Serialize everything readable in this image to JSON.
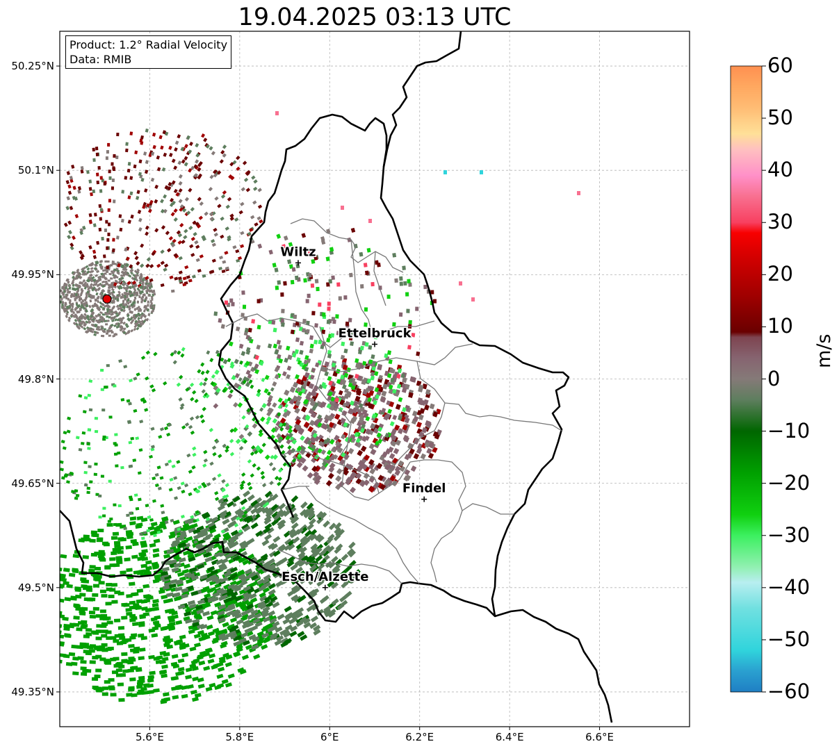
{
  "title": "19.04.2025 03:13 UTC",
  "info": {
    "product": "Product: 1.2° Radial Velocity",
    "data": "Data: RMIB"
  },
  "axes": {
    "lat_ticks": [
      "50.25°N",
      "50.1°N",
      "49.95°N",
      "49.8°N",
      "49.65°N",
      "49.5°N",
      "49.35°N"
    ],
    "lon_ticks": [
      "5.6°E",
      "5.8°E",
      "6°E",
      "6.2°E",
      "6.4°E",
      "6.6°E"
    ],
    "lat_values": [
      50.25,
      50.1,
      49.95,
      49.8,
      49.65,
      49.5,
      49.35
    ],
    "lon_values": [
      5.6,
      5.8,
      6.0,
      6.2,
      6.4,
      6.6
    ],
    "lat_range": [
      49.3,
      50.3
    ],
    "lon_range": [
      5.4,
      6.8
    ],
    "grid": true
  },
  "cities": [
    {
      "name": "Wiltz",
      "lon": 5.93,
      "lat": 49.967
    },
    {
      "name": "Ettelbruck",
      "lon": 6.1,
      "lat": 49.85
    },
    {
      "name": "Findel",
      "lon": 6.21,
      "lat": 49.627
    },
    {
      "name": "Esch/Alzette",
      "lon": 5.99,
      "lat": 49.5
    }
  ],
  "radar_site": {
    "lon": 5.505,
    "lat": 49.915,
    "color": "#e00000"
  },
  "colorbar": {
    "unit": "m/s",
    "min": -60,
    "max": 60,
    "tick_labels": [
      "60",
      "50",
      "40",
      "30",
      "20",
      "10",
      "0",
      "−10",
      "−20",
      "−30",
      "−40",
      "−50",
      "−60"
    ],
    "tick_values": [
      60,
      50,
      40,
      30,
      20,
      10,
      0,
      -10,
      -20,
      -30,
      -40,
      -50,
      -60
    ],
    "stops": [
      {
        "v": -60,
        "color": "#1f7fc4"
      },
      {
        "v": -56,
        "color": "#2aa0d0"
      },
      {
        "v": -52,
        "color": "#30d4dc"
      },
      {
        "v": -44,
        "color": "#70e0e0"
      },
      {
        "v": -39,
        "color": "#b8eef0"
      },
      {
        "v": -36,
        "color": "#90f0b0"
      },
      {
        "v": -30,
        "color": "#3cf060"
      },
      {
        "v": -26,
        "color": "#10d010"
      },
      {
        "v": -18,
        "color": "#00a000"
      },
      {
        "v": -10,
        "color": "#006600"
      },
      {
        "v": -4,
        "color": "#5e7e5e"
      },
      {
        "v": 0,
        "color": "#857a78"
      },
      {
        "v": 4,
        "color": "#866470"
      },
      {
        "v": 8,
        "color": "#7e4450"
      },
      {
        "v": 9,
        "color": "#6a0000"
      },
      {
        "v": 16,
        "color": "#a00000"
      },
      {
        "v": 24,
        "color": "#d80000"
      },
      {
        "v": 28,
        "color": "#f80000"
      },
      {
        "v": 30,
        "color": "#f84060"
      },
      {
        "v": 35,
        "color": "#f87090"
      },
      {
        "v": 39,
        "color": "#ff90c8"
      },
      {
        "v": 44,
        "color": "#ffc0c0"
      },
      {
        "v": 47,
        "color": "#ffe098"
      },
      {
        "v": 52,
        "color": "#ffbc74"
      },
      {
        "v": 56,
        "color": "#ffa860"
      },
      {
        "v": 60,
        "color": "#ff9050"
      }
    ]
  }
}
